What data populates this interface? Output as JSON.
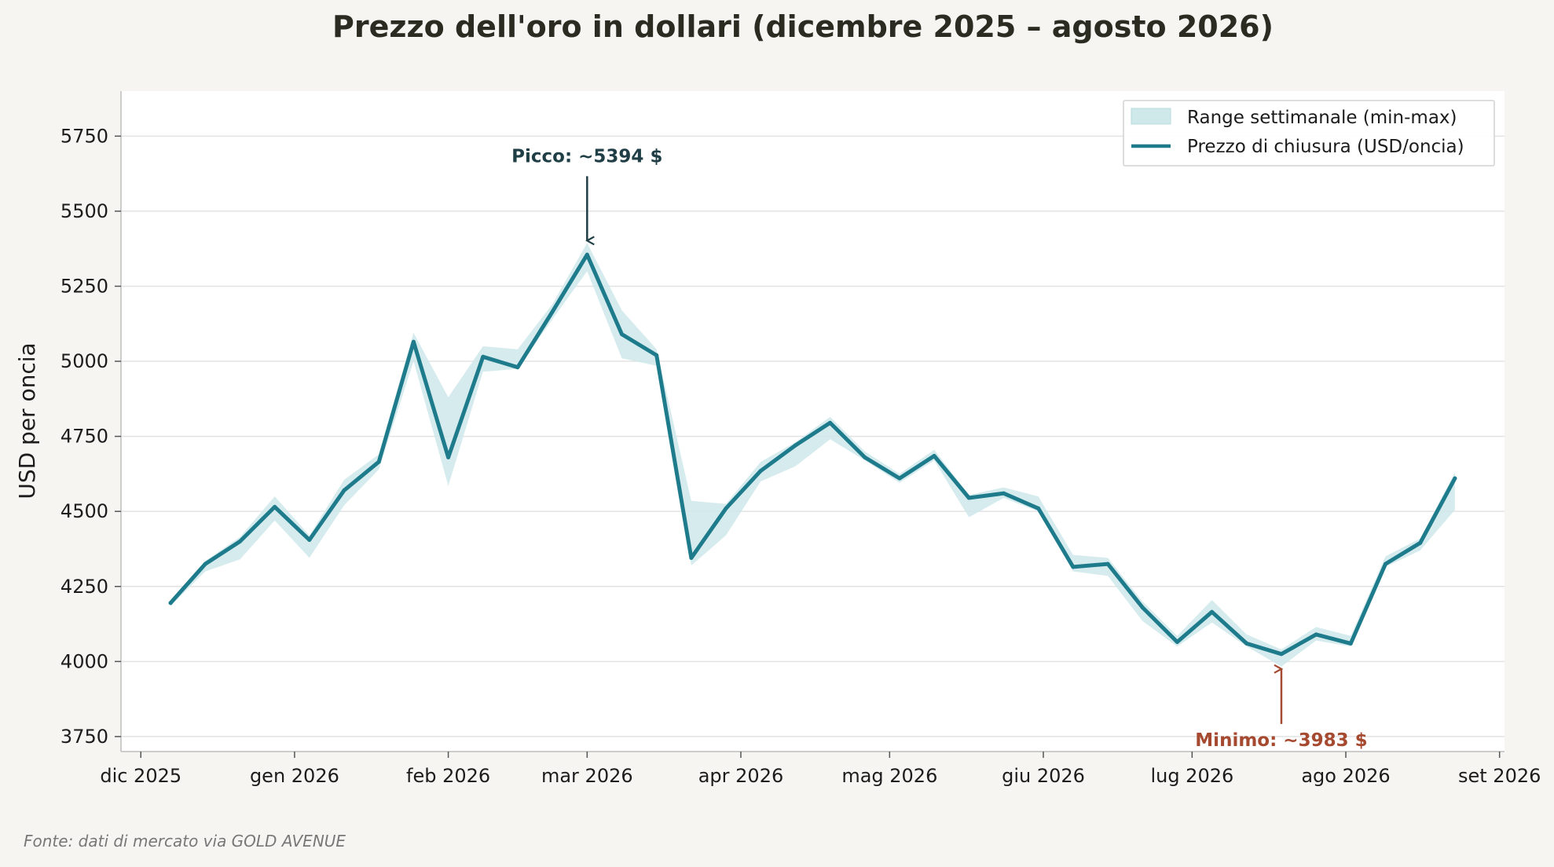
{
  "chart_data": {
    "type": "line",
    "title": "Prezzo dell'oro in dollari (dicembre 2025 – agosto 2026)",
    "ylabel": "USD per oncia",
    "xlabel": "",
    "source": "Fonte: dati di mercato via GOLD AVENUE",
    "ylim": [
      3700,
      5900
    ],
    "xlim": [
      "2025-11-27",
      "2026-09-02"
    ],
    "yticks": [
      3750,
      4000,
      4250,
      4500,
      4750,
      5000,
      5250,
      5500,
      5750
    ],
    "xticks": [
      {
        "date": "2025-12-01",
        "label": "dic 2025"
      },
      {
        "date": "2026-01-01",
        "label": "gen 2026"
      },
      {
        "date": "2026-02-01",
        "label": "feb 2026"
      },
      {
        "date": "2026-03-01",
        "label": "mar 2026"
      },
      {
        "date": "2026-04-01",
        "label": "apr 2026"
      },
      {
        "date": "2026-05-01",
        "label": "mag 2026"
      },
      {
        "date": "2026-06-01",
        "label": "giu 2026"
      },
      {
        "date": "2026-07-01",
        "label": "lug 2026"
      },
      {
        "date": "2026-08-01",
        "label": "ago 2026"
      },
      {
        "date": "2026-09-01",
        "label": "set 2026"
      }
    ],
    "grid": "horizontal",
    "legend_position": "top-right",
    "legend": [
      "Range settimanale (min-max)",
      "Prezzo di chiusura (USD/oncia)"
    ],
    "colors": {
      "line": "#1e7b8c",
      "band": "#cfe8ea",
      "peak": "#1f3e45",
      "low": "#a54a30"
    },
    "series": [
      {
        "name": "Prezzo di chiusura (USD/oncia)",
        "kind": "line",
        "points": [
          {
            "x": "2025-12-07",
            "close": 4195,
            "min": 4185,
            "max": 4205
          },
          {
            "x": "2025-12-14",
            "close": 4325,
            "min": 4300,
            "max": 4335
          },
          {
            "x": "2025-12-21",
            "close": 4400,
            "min": 4340,
            "max": 4415
          },
          {
            "x": "2025-12-28",
            "close": 4515,
            "min": 4470,
            "max": 4550
          },
          {
            "x": "2026-01-04",
            "close": 4405,
            "min": 4345,
            "max": 4420
          },
          {
            "x": "2026-01-11",
            "close": 4570,
            "min": 4520,
            "max": 4605
          },
          {
            "x": "2026-01-18",
            "close": 4665,
            "min": 4640,
            "max": 4690
          },
          {
            "x": "2026-01-25",
            "close": 5065,
            "min": 5000,
            "max": 5095
          },
          {
            "x": "2026-02-01",
            "close": 4680,
            "min": 4585,
            "max": 4880
          },
          {
            "x": "2026-02-08",
            "close": 5015,
            "min": 4965,
            "max": 5050
          },
          {
            "x": "2026-02-15",
            "close": 4980,
            "min": 4975,
            "max": 5040
          },
          {
            "x": "2026-02-22",
            "close": 5165,
            "min": 5140,
            "max": 5190
          },
          {
            "x": "2026-03-01",
            "close": 5355,
            "min": 5300,
            "max": 5394
          },
          {
            "x": "2026-03-08",
            "close": 5090,
            "min": 5010,
            "max": 5170
          },
          {
            "x": "2026-03-15",
            "close": 5020,
            "min": 4985,
            "max": 5040
          },
          {
            "x": "2026-03-22",
            "close": 4345,
            "min": 4320,
            "max": 4535
          },
          {
            "x": "2026-03-29",
            "close": 4510,
            "min": 4420,
            "max": 4525
          },
          {
            "x": "2026-04-05",
            "close": 4635,
            "min": 4600,
            "max": 4665
          },
          {
            "x": "2026-04-12",
            "close": 4720,
            "min": 4650,
            "max": 4730
          },
          {
            "x": "2026-04-19",
            "close": 4795,
            "min": 4740,
            "max": 4815
          },
          {
            "x": "2026-04-26",
            "close": 4680,
            "min": 4670,
            "max": 4700
          },
          {
            "x": "2026-05-03",
            "close": 4610,
            "min": 4595,
            "max": 4625
          },
          {
            "x": "2026-05-10",
            "close": 4685,
            "min": 4670,
            "max": 4705
          },
          {
            "x": "2026-05-17",
            "close": 4545,
            "min": 4480,
            "max": 4555
          },
          {
            "x": "2026-05-24",
            "close": 4560,
            "min": 4545,
            "max": 4580
          },
          {
            "x": "2026-05-31",
            "close": 4510,
            "min": 4500,
            "max": 4550
          },
          {
            "x": "2026-06-07",
            "close": 4315,
            "min": 4300,
            "max": 4355
          },
          {
            "x": "2026-06-14",
            "close": 4325,
            "min": 4285,
            "max": 4345
          },
          {
            "x": "2026-06-21",
            "close": 4180,
            "min": 4135,
            "max": 4200
          },
          {
            "x": "2026-06-28",
            "close": 4065,
            "min": 4050,
            "max": 4085
          },
          {
            "x": "2026-07-05",
            "close": 4165,
            "min": 4130,
            "max": 4205
          },
          {
            "x": "2026-07-12",
            "close": 4060,
            "min": 4050,
            "max": 4090
          },
          {
            "x": "2026-07-19",
            "close": 4025,
            "min": 3983,
            "max": 4040
          },
          {
            "x": "2026-07-26",
            "close": 4090,
            "min": 4070,
            "max": 4115
          },
          {
            "x": "2026-08-02",
            "close": 4060,
            "min": 4050,
            "max": 4085
          },
          {
            "x": "2026-08-09",
            "close": 4325,
            "min": 4315,
            "max": 4350
          },
          {
            "x": "2026-08-16",
            "close": 4395,
            "min": 4370,
            "max": 4410
          },
          {
            "x": "2026-08-23",
            "close": 4610,
            "min": 4505,
            "max": 4630
          }
        ]
      }
    ],
    "annotations": [
      {
        "label": "Picco: ~5394 $",
        "x": "2026-03-01",
        "y": 5394,
        "type": "peak"
      },
      {
        "label": "Minimo: ~3983 $",
        "x": "2026-07-19",
        "y": 3983,
        "type": "low"
      }
    ]
  }
}
